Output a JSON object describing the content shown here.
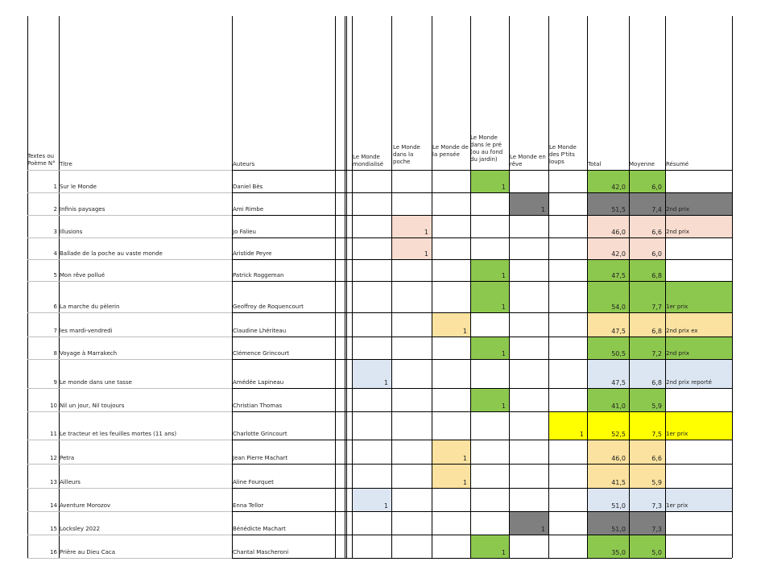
{
  "headers": {
    "num": "Textes ou Poème N°",
    "titre": "Titre",
    "auteurs": "Auteurs",
    "mondialise": "Le Monde mondialisé",
    "poche": "Le Monde dans la poche",
    "pensee": "Le Monde de la pensée",
    "pre": "Le Monde dans le pré (ou au fond du jardin)",
    "reve": "Le Monde en rêve",
    "ptits": "Le Monde des P'tits loups",
    "total": "Total",
    "moyenne": "Moyenne",
    "resume": "Résumé"
  },
  "colors": {
    "green": "#8dc84e",
    "grey": "#7f7f7f",
    "salmon": "#f8dccf",
    "beige": "#fbe2a0",
    "lightblue": "#dce6f2",
    "yellow": "#ffff00"
  },
  "rows": [
    {
      "num": "1",
      "titre": "Sur le Monde",
      "auteur": "Daniel Bès",
      "cat": "pre",
      "val": "1",
      "total": "42,0",
      "moyenne": "6,0",
      "resume": "",
      "color": "#8dc84e"
    },
    {
      "num": "2",
      "titre": "Infinis paysages",
      "auteur": "Ami Rimbe",
      "cat": "reve",
      "val": "1",
      "total": "51,5",
      "moyenne": "7,4",
      "resume": "2nd prix",
      "color": "#7f7f7f"
    },
    {
      "num": "3",
      "titre": "Illusions",
      "auteur": "Jo Falieu",
      "cat": "poche",
      "val": "1",
      "total": "46,0",
      "moyenne": "6,6",
      "resume": "2nd prix",
      "color": "#f8dccf"
    },
    {
      "num": "4",
      "titre": "Ballade de la poche au vaste monde",
      "auteur": "Aristide Peyre",
      "cat": "poche",
      "val": "1",
      "total": "42,0",
      "moyenne": "6,0",
      "resume": "",
      "color": "#f8dccf"
    },
    {
      "num": "5",
      "titre": "Mon rêve pollué",
      "auteur": "Patrick Roggeman",
      "cat": "pre",
      "val": "1",
      "total": "47,5",
      "moyenne": "6,8",
      "resume": "",
      "color": "#8dc84e"
    },
    {
      "num": "6",
      "titre": "La marche du pèlerin",
      "auteur": "Geoffroy de Roquencourt",
      "cat": "pre",
      "val": "1",
      "total": "54,0",
      "moyenne": "7,7",
      "resume": "1er prix",
      "color": "#8dc84e"
    },
    {
      "num": "7",
      "titre": "les mardi-vendredi",
      "auteur": "Claudine Lhériteau",
      "cat": "pensee",
      "val": "1",
      "total": "47,5",
      "moyenne": "6,8",
      "resume": "2nd prix ex",
      "color": "#fbe2a0"
    },
    {
      "num": "8",
      "titre": "Voyage à Marrakech",
      "auteur": "Clémence Grincourt",
      "cat": "pre",
      "val": "1",
      "total": "50,5",
      "moyenne": "7,2",
      "resume": "2nd prix",
      "color": "#8dc84e"
    },
    {
      "num": "9",
      "titre": "Le monde dans une tasse",
      "auteur": "Amédée Lapineau",
      "cat": "mondialise",
      "val": "1",
      "total": "47,5",
      "moyenne": "6,8",
      "resume": "2nd prix reporté",
      "color": "#dce6f2"
    },
    {
      "num": "10",
      "titre": "Nil un jour, Nil toujours",
      "auteur": "Christian Thomas",
      "cat": "pre",
      "val": "1",
      "total": "41,0",
      "moyenne": "5,9",
      "resume": "",
      "color": "#8dc84e"
    },
    {
      "num": "11",
      "titre": "Le tracteur et les feuilles mortes (11 ans)",
      "auteur": "Charlotte Grincourt",
      "cat": "ptits",
      "val": "1",
      "total": "52,5",
      "moyenne": "7,5",
      "resume": "1er prix",
      "color": "#ffff00"
    },
    {
      "num": "12",
      "titre": "Petra",
      "auteur": "Jean Pierre Machart",
      "cat": "pensee",
      "val": "1",
      "total": "46,0",
      "moyenne": "6,6",
      "resume": "",
      "color": "#fbe2a0"
    },
    {
      "num": "13",
      "titre": "Ailleurs",
      "auteur": "Aline Fourquet",
      "cat": "pensee",
      "val": "1",
      "total": "41,5",
      "moyenne": "5,9",
      "resume": "",
      "color": "#fbe2a0"
    },
    {
      "num": "14",
      "titre": "Aventure Morozov",
      "auteur": "Enna Tellor",
      "cat": "mondialise",
      "val": "1",
      "total": "51,0",
      "moyenne": "7,3",
      "resume": "1er prix",
      "color": "#dce6f2"
    },
    {
      "num": "15",
      "titre": "Locksley 2022",
      "auteur": "Bénédicte Machart",
      "cat": "reve",
      "val": "1",
      "total": "51,0",
      "moyenne": "7,3",
      "resume": "",
      "color": "#7f7f7f"
    },
    {
      "num": "16",
      "titre": "Prière au Dieu Caca",
      "auteur": "Chantal Mascheroni",
      "cat": "pre",
      "val": "1",
      "total": "35,0",
      "moyenne": "5,0",
      "resume": "",
      "color": "#8dc84e"
    }
  ]
}
